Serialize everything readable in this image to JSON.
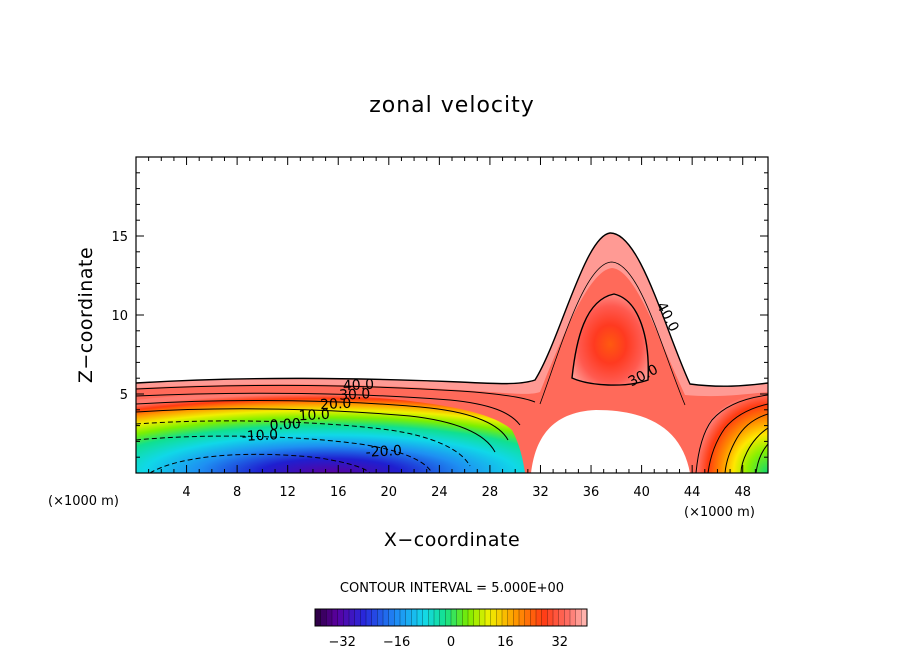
{
  "chart_data": {
    "type": "contour",
    "title": "zonal velocity",
    "xlabel": "X−coordinate",
    "ylabel": "Z−coordinate",
    "x_unit_left": "(×1000 m)",
    "x_unit_right": "(×1000 m)",
    "xlim": [
      0,
      50
    ],
    "ylim": [
      0,
      20
    ],
    "x_ticks": [
      4,
      8,
      12,
      16,
      20,
      24,
      28,
      32,
      36,
      40,
      44,
      48
    ],
    "y_ticks": [
      5,
      10,
      15
    ],
    "contour_interval_text": "CONTOUR INTERVAL = 5.000E+00",
    "contour_labels": [
      {
        "text": "40.0",
        "x": 17.6,
        "z": 5.6
      },
      {
        "text": "30.0",
        "x": 17.3,
        "z": 5.0
      },
      {
        "text": "20.0",
        "x": 15.8,
        "z": 4.4
      },
      {
        "text": "10.0",
        "x": 14.1,
        "z": 3.7
      },
      {
        "text": "0.00",
        "x": 11.8,
        "z": 3.1
      },
      {
        "text": "-10.0",
        "x": 9.8,
        "z": 2.4
      },
      {
        "text": "-20.0",
        "x": 19.6,
        "z": 1.4
      },
      {
        "text": "40.0",
        "x": 42.1,
        "z": 9.9
      },
      {
        "text": "30.0",
        "x": 40.1,
        "z": 6.2
      }
    ],
    "data_range": {
      "min": -40,
      "max": 42
    },
    "colorbar": {
      "ticks": [
        -32,
        -16,
        0,
        16,
        32
      ],
      "tick_labels": [
        "−32",
        "−16",
        "0",
        "16",
        "32"
      ],
      "min": -40,
      "max": 40,
      "step": 5
    },
    "colormap": "rainbow (violet-blue-cyan-green-yellow-orange-red-pink)"
  }
}
